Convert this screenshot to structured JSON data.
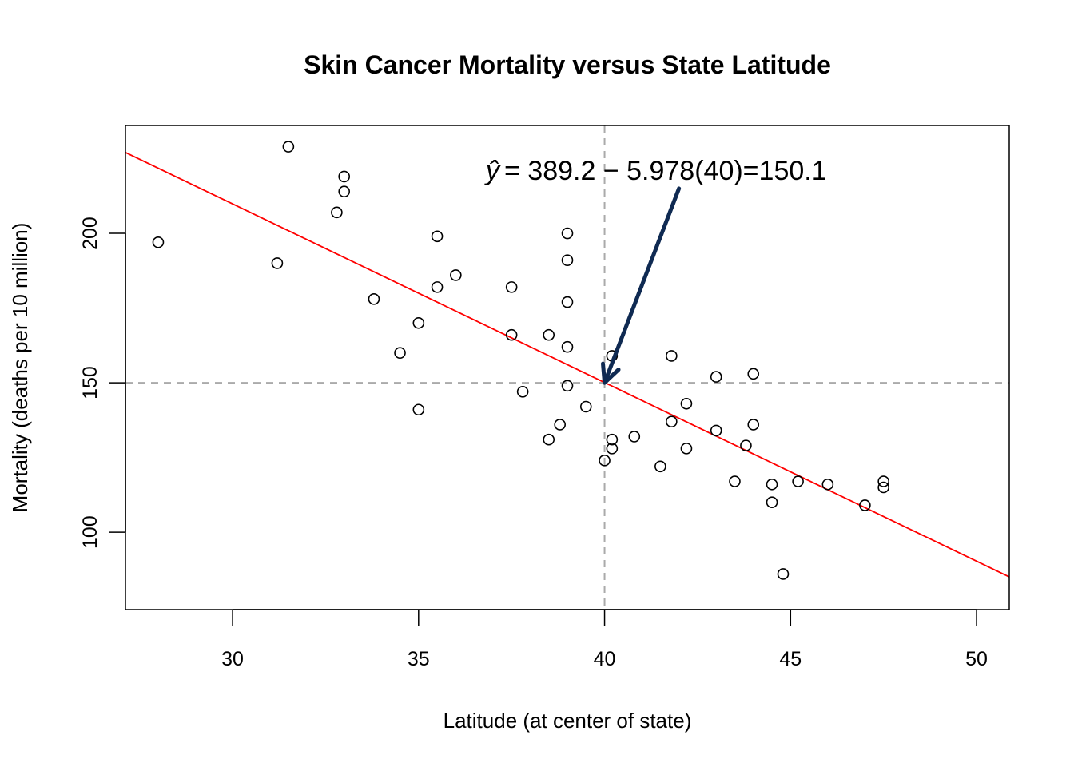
{
  "chart_data": {
    "type": "scatter",
    "title": "Skin Cancer Mortality versus State Latitude",
    "xlabel": "Latitude (at center of state)",
    "ylabel": "Mortality (deaths per 10 million)",
    "xlim": [
      27.12,
      50.88
    ],
    "ylim": [
      74.1,
      236.1
    ],
    "xticks": [
      30,
      35,
      40,
      45,
      50
    ],
    "yticks": [
      100,
      150,
      200
    ],
    "grid": false,
    "points": [
      [
        33.0,
        219
      ],
      [
        34.5,
        160
      ],
      [
        35.0,
        170
      ],
      [
        37.5,
        182
      ],
      [
        39.0,
        149
      ],
      [
        41.8,
        159
      ],
      [
        39.0,
        200
      ],
      [
        39.0,
        177
      ],
      [
        28.0,
        197
      ],
      [
        33.0,
        214
      ],
      [
        44.5,
        116
      ],
      [
        40.0,
        124
      ],
      [
        40.2,
        128
      ],
      [
        42.2,
        128
      ],
      [
        38.5,
        166
      ],
      [
        37.8,
        147
      ],
      [
        31.2,
        190
      ],
      [
        45.2,
        117
      ],
      [
        39.0,
        162
      ],
      [
        42.2,
        143
      ],
      [
        43.5,
        117
      ],
      [
        46.0,
        116
      ],
      [
        32.8,
        207
      ],
      [
        38.5,
        131
      ],
      [
        47.0,
        109
      ],
      [
        41.5,
        122
      ],
      [
        39.0,
        191
      ],
      [
        43.8,
        129
      ],
      [
        40.2,
        159
      ],
      [
        35.0,
        141
      ],
      [
        43.0,
        152
      ],
      [
        35.5,
        199
      ],
      [
        47.5,
        115
      ],
      [
        40.2,
        131
      ],
      [
        35.5,
        182
      ],
      [
        44.0,
        136
      ],
      [
        40.8,
        132
      ],
      [
        41.8,
        137
      ],
      [
        33.8,
        178
      ],
      [
        44.8,
        86
      ],
      [
        36.0,
        186
      ],
      [
        31.5,
        229
      ],
      [
        39.5,
        142
      ],
      [
        44.0,
        153
      ],
      [
        37.5,
        166
      ],
      [
        47.5,
        117
      ],
      [
        38.8,
        136
      ],
      [
        44.5,
        110
      ],
      [
        43.0,
        134
      ]
    ],
    "regression_line": {
      "intercept": 389.2,
      "slope": -5.978,
      "color": "#ff0000"
    },
    "reference_lines": {
      "x": 40,
      "y": 150,
      "color": "#aaaaaa",
      "style": "dashed"
    },
    "annotation": {
      "yhat": "ŷ",
      "text": "= 389.2 − 5.978(40)=150.1",
      "arrow_from": [
        42.0,
        215
      ],
      "arrow_to": [
        40,
        150
      ],
      "arrow_color": "#0f2a52"
    }
  }
}
